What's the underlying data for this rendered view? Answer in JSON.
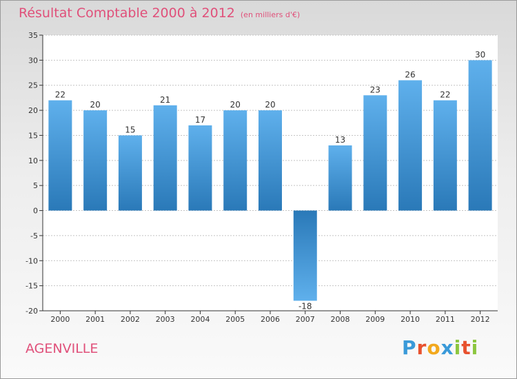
{
  "chart_data": {
    "type": "bar",
    "title": "Résultat Comptable 2000 à 2012",
    "subtitle": "(en milliers d'€)",
    "categories": [
      "2000",
      "2001",
      "2002",
      "2003",
      "2004",
      "2005",
      "2006",
      "2007",
      "2008",
      "2009",
      "2010",
      "2011",
      "2012"
    ],
    "values": [
      22,
      20,
      15,
      21,
      17,
      20,
      20,
      -18,
      13,
      23,
      26,
      22,
      30
    ],
    "ylim": [
      -20,
      35
    ],
    "yticks": [
      35,
      30,
      25,
      20,
      15,
      10,
      5,
      0,
      -5,
      -10,
      -15,
      -20
    ],
    "grid": true,
    "xlabel": "",
    "ylabel": ""
  },
  "location": "AGENVILLE",
  "logo": {
    "text": "Proxiti",
    "letter_colors": [
      "#3a9ad9",
      "#e8512e",
      "#f2a81d",
      "#3a9ad9",
      "#8cc63f",
      "#e8512e",
      "#8cc63f"
    ]
  },
  "colors": {
    "title": "#e0507a",
    "bar_light": "#5fb0ec",
    "bar_dark": "#2a79b8",
    "grid": "#c4c4c4",
    "axis": "#333333"
  }
}
